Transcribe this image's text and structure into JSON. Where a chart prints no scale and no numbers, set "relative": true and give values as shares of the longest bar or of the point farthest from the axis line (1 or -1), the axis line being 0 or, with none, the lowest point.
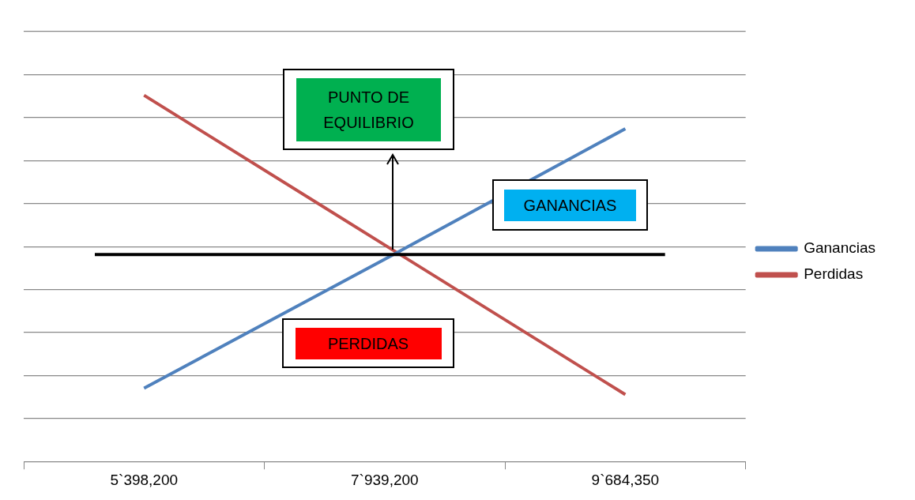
{
  "chart_data": {
    "type": "line",
    "relative": true,
    "categories": [
      "5`398,200",
      "7`939,200",
      "9`684,350"
    ],
    "series": [
      {
        "name": "Ganancias",
        "color": "#4f81bd",
        "values": [
          -0.84,
          -0.03,
          0.79
        ]
      },
      {
        "name": "Perdidas",
        "color": "#c0504d",
        "values": [
          1,
          0.06,
          -0.88
        ]
      }
    ],
    "ref_lines": [
      {
        "axis": "y",
        "value": 0,
        "color": "#000000"
      }
    ],
    "annotations": [
      "PUNTO DE EQUILIBRIO",
      "GANANCIAS",
      "PERDIDAS"
    ],
    "grid": "y",
    "legend": "right",
    "marker": "none",
    "line_style": "solid"
  }
}
